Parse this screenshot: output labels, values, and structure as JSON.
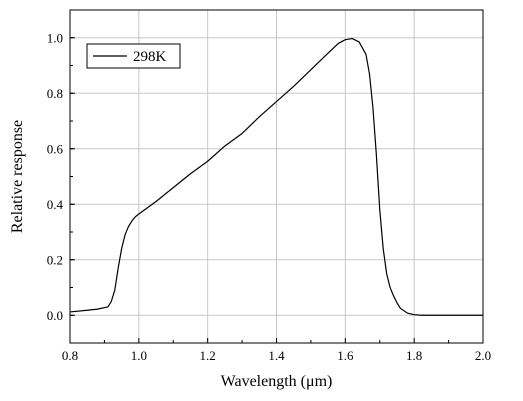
{
  "chart_data": {
    "type": "line",
    "xlabel": "Wavelength (μm)",
    "ylabel": "Relative response",
    "xlim": [
      0.8,
      2.0
    ],
    "ylim": [
      -0.1,
      1.1
    ],
    "grid": true,
    "legend_position": "top-left",
    "x_ticks": [
      {
        "value": 0.8,
        "label": "0.8"
      },
      {
        "value": 1.0,
        "label": "1.0"
      },
      {
        "value": 1.2,
        "label": "1.2"
      },
      {
        "value": 1.4,
        "label": "1.4"
      },
      {
        "value": 1.6,
        "label": "1.6"
      },
      {
        "value": 1.8,
        "label": "1.8"
      },
      {
        "value": 2.0,
        "label": "2.0"
      }
    ],
    "y_ticks": [
      {
        "value": 0.0,
        "label": "0.0"
      },
      {
        "value": 0.2,
        "label": "0.2"
      },
      {
        "value": 0.4,
        "label": "0.4"
      },
      {
        "value": 0.6,
        "label": "0.6"
      },
      {
        "value": 0.8,
        "label": "0.8"
      },
      {
        "value": 1.0,
        "label": "1.0"
      }
    ],
    "series": [
      {
        "name": "298K",
        "color": "#000000",
        "x": [
          0.8,
          0.85,
          0.88,
          0.91,
          0.92,
          0.93,
          0.94,
          0.95,
          0.96,
          0.97,
          0.98,
          0.99,
          1.0,
          1.05,
          1.1,
          1.15,
          1.2,
          1.25,
          1.3,
          1.35,
          1.4,
          1.45,
          1.5,
          1.55,
          1.58,
          1.6,
          1.62,
          1.64,
          1.66,
          1.67,
          1.68,
          1.69,
          1.7,
          1.71,
          1.72,
          1.73,
          1.74,
          1.75,
          1.76,
          1.78,
          1.8,
          1.82,
          1.9,
          2.0
        ],
        "y": [
          0.012,
          0.018,
          0.022,
          0.03,
          0.05,
          0.09,
          0.17,
          0.24,
          0.29,
          0.32,
          0.34,
          0.355,
          0.365,
          0.41,
          0.46,
          0.51,
          0.555,
          0.61,
          0.655,
          0.715,
          0.77,
          0.825,
          0.885,
          0.945,
          0.98,
          0.993,
          0.997,
          0.985,
          0.94,
          0.87,
          0.75,
          0.58,
          0.38,
          0.24,
          0.15,
          0.1,
          0.07,
          0.045,
          0.025,
          0.008,
          0.002,
          0.0,
          0.0,
          0.0
        ]
      }
    ]
  }
}
